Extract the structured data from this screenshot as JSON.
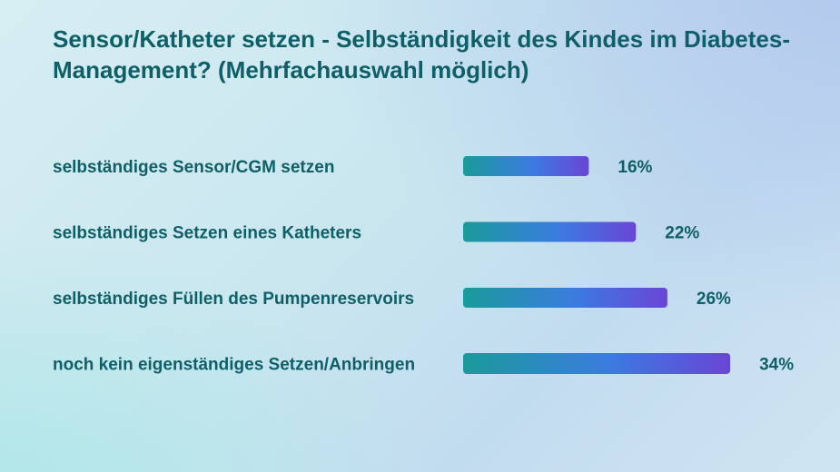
{
  "chart_data": {
    "type": "bar",
    "orientation": "horizontal",
    "title_lines": [
      "Sensor/Katheter setzen - Selbständigkeit des Kindes im Diabetes-",
      "Management? (Mehrfachauswahl möglich)"
    ],
    "categories": [
      "selbständiges Sensor/CGM setzen",
      "selbständiges Setzen eines Katheters",
      "selbständiges Füllen des Pumpenreservoirs",
      "noch kein eigenständiges Setzen/Anbringen"
    ],
    "values": [
      16,
      22,
      26,
      34
    ],
    "value_labels": [
      "16%",
      "22%",
      "26%",
      "34%"
    ],
    "unit": "%",
    "grid": false,
    "legend": "none",
    "bar_gradient": [
      "#1a9a9a",
      "#3b7be0",
      "#6a45d6"
    ]
  }
}
